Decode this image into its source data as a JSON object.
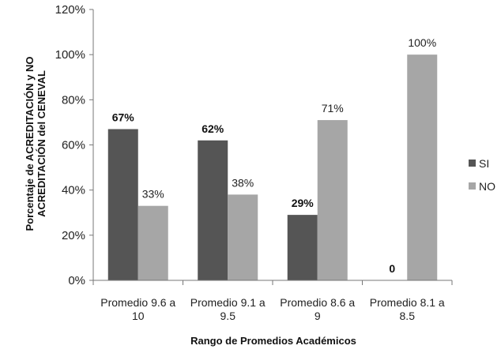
{
  "chart_data": {
    "type": "bar",
    "categories": [
      [
        "Promedio 9.6 a",
        "10"
      ],
      [
        "Promedio 9.1 a",
        "9.5"
      ],
      [
        "Promedio 8.6 a",
        "9"
      ],
      [
        "Promedio 8.1 a",
        "8.5"
      ]
    ],
    "series": [
      {
        "name": "SI",
        "values": [
          67,
          62,
          29,
          0
        ],
        "labels": [
          "67%",
          "62%",
          "29%",
          "0"
        ],
        "color": "#555555",
        "label_bold": true
      },
      {
        "name": "NO",
        "values": [
          33,
          38,
          71,
          100
        ],
        "labels": [
          "33%",
          "38%",
          "71%",
          "100%"
        ],
        "color": "#a6a6a6",
        "label_bold": false
      }
    ],
    "xlabel": "Rango de Promedios Académicos",
    "ylabel": [
      "Porcentaje de ACREDITACIÓN y NO",
      "ACREDITACIÓN del CENEVAL"
    ],
    "ylim": [
      0,
      120
    ],
    "yticks": [
      0,
      20,
      40,
      60,
      80,
      100,
      120
    ],
    "ytick_labels": [
      "0%",
      "20%",
      "40%",
      "60%",
      "80%",
      "100%",
      "120%"
    ],
    "grid": false,
    "legend_position": "right"
  }
}
